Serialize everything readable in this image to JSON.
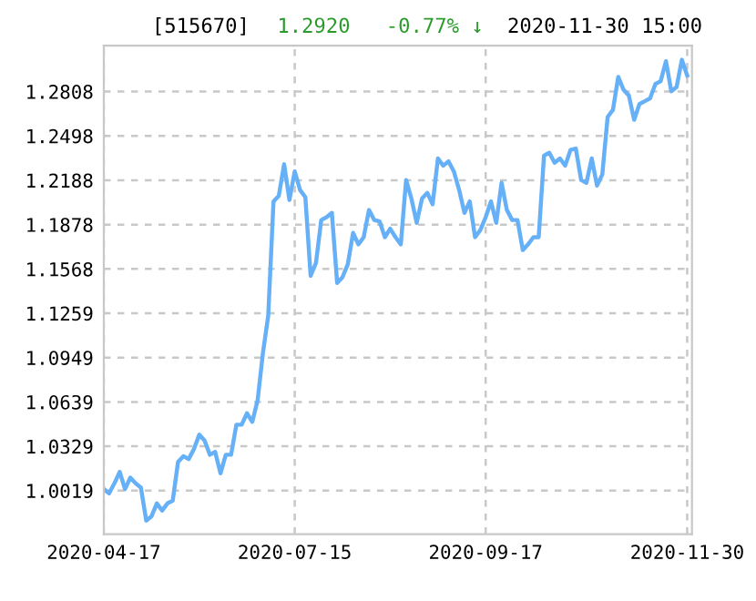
{
  "chart_data": {
    "type": "line",
    "title": "[515670]",
    "annotations": [
      "1.2920",
      "-0.77% ↓",
      "2020-11-30 15:00"
    ],
    "categories": [
      "2020-04-17",
      null,
      null,
      null,
      null,
      null,
      null,
      null,
      null,
      null,
      null,
      null,
      null,
      null,
      null,
      null,
      null,
      null,
      null,
      null,
      null,
      null,
      null,
      null,
      null,
      null,
      null,
      null,
      null,
      null,
      null,
      null,
      null,
      null,
      null,
      null,
      "2020-07-15",
      null,
      null,
      null,
      null,
      null,
      null,
      null,
      null,
      null,
      null,
      null,
      null,
      null,
      null,
      null,
      null,
      null,
      null,
      null,
      null,
      null,
      null,
      null,
      null,
      null,
      null,
      null,
      null,
      null,
      null,
      null,
      null,
      null,
      null,
      null,
      "2020-09-17",
      null,
      null,
      null,
      null,
      null,
      null,
      null,
      null,
      null,
      null,
      null,
      null,
      null,
      null,
      null,
      null,
      null,
      null,
      null,
      null,
      null,
      null,
      null,
      null,
      null,
      null,
      null,
      null,
      null,
      null,
      null,
      null,
      null,
      null,
      null,
      null,
      null,
      "2020-11-30"
    ],
    "series": [
      {
        "color": "#66b0f7",
        "values": [
          1.003,
          1.0,
          1.007,
          1.015,
          1.003,
          1.011,
          1.007,
          1.004,
          0.981,
          0.984,
          0.993,
          0.988,
          0.993,
          0.995,
          1.022,
          1.026,
          1.024,
          1.031,
          1.041,
          1.037,
          1.027,
          1.029,
          1.014,
          1.027,
          1.027,
          1.048,
          1.048,
          1.056,
          1.05,
          1.065,
          1.098,
          1.124,
          1.204,
          1.208,
          1.23,
          1.205,
          1.225,
          1.212,
          1.207,
          1.152,
          1.161,
          1.191,
          1.193,
          1.196,
          1.147,
          1.151,
          1.16,
          1.182,
          1.174,
          1.179,
          1.198,
          1.191,
          1.19,
          1.179,
          1.185,
          1.179,
          1.174,
          1.219,
          1.206,
          1.189,
          1.206,
          1.21,
          1.202,
          1.234,
          1.229,
          1.232,
          1.225,
          1.212,
          1.196,
          1.204,
          1.179,
          1.184,
          1.193,
          1.204,
          1.189,
          1.217,
          1.198,
          1.191,
          1.191,
          1.17,
          1.174,
          1.179,
          1.179,
          1.236,
          1.238,
          1.231,
          1.234,
          1.229,
          1.24,
          1.241,
          1.219,
          1.217,
          1.234,
          1.215,
          1.223,
          1.263,
          1.268,
          1.291,
          1.282,
          1.278,
          1.261,
          1.272,
          1.274,
          1.276,
          1.286,
          1.288,
          1.302,
          1.281,
          1.284,
          1.303,
          1.292
        ]
      }
    ],
    "ylim": [
      0.9715,
      1.3129
    ],
    "yticks": [
      1.0019,
      1.0329,
      1.0639,
      1.0949,
      1.1259,
      1.1568,
      1.1878,
      1.2188,
      1.2498,
      1.2808
    ],
    "grid": true,
    "line_style": "solid",
    "marker": "none",
    "legend": false
  }
}
